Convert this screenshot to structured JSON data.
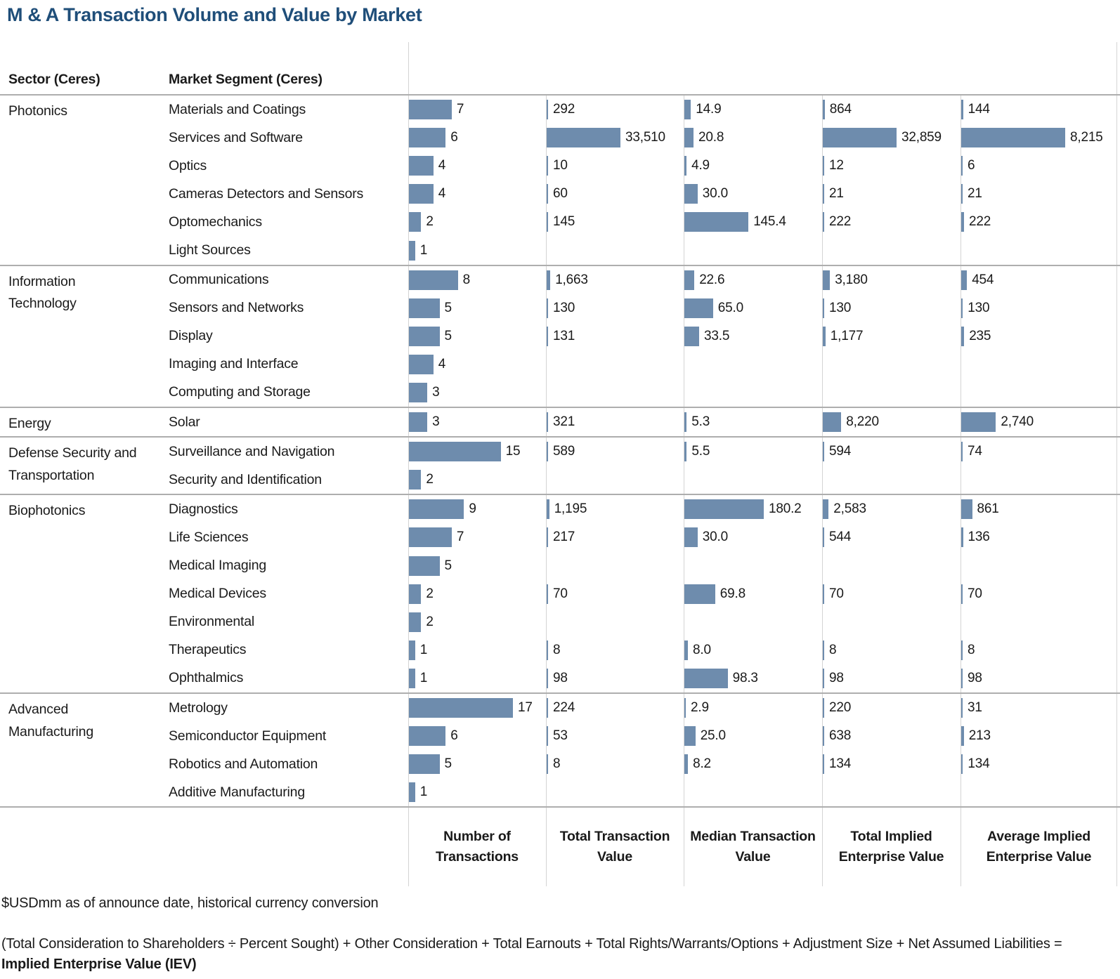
{
  "chart_data": {
    "type": "bar",
    "title": "M & A Transaction Volume and Value by Market",
    "row_headers": [
      "Sector (Ceres)",
      "Market Segment (Ceres)"
    ],
    "legend_position": "none",
    "grid": "column-separators",
    "measures": [
      {
        "label": "Number of Transactions",
        "axis_max": 17
      },
      {
        "label": "Total Transaction Value",
        "axis_max": 33510
      },
      {
        "label": "Median Transaction Value",
        "axis_max": 180.2
      },
      {
        "label": "Total Implied Enterprise Value",
        "axis_max": 32859
      },
      {
        "label": "Average Implied Enterprise Value",
        "axis_max": 8215
      }
    ],
    "sectors": [
      {
        "sector": "Photonics",
        "segments": [
          {
            "name": "Materials and Coatings",
            "values": [
              7,
              292,
              14.9,
              864,
              144
            ],
            "labels": [
              "7",
              "292",
              "14.9",
              "864",
              "144"
            ]
          },
          {
            "name": "Services and Software",
            "values": [
              6,
              33510,
              20.8,
              32859,
              8215
            ],
            "labels": [
              "6",
              "33,510",
              "20.8",
              "32,859",
              "8,215"
            ]
          },
          {
            "name": "Optics",
            "values": [
              4,
              10,
              4.9,
              12,
              6
            ],
            "labels": [
              "4",
              "10",
              "4.9",
              "12",
              "6"
            ]
          },
          {
            "name": "Cameras Detectors and Sensors",
            "values": [
              4,
              60,
              30.0,
              21,
              21
            ],
            "labels": [
              "4",
              "60",
              "30.0",
              "21",
              "21"
            ]
          },
          {
            "name": "Optomechanics",
            "values": [
              2,
              145,
              145.4,
              222,
              222
            ],
            "labels": [
              "2",
              "145",
              "145.4",
              "222",
              "222"
            ]
          },
          {
            "name": "Light Sources",
            "values": [
              1,
              null,
              null,
              null,
              null
            ],
            "labels": [
              "1",
              "",
              "",
              "",
              ""
            ]
          }
        ]
      },
      {
        "sector": "Information Technology",
        "segments": [
          {
            "name": "Communications",
            "values": [
              8,
              1663,
              22.6,
              3180,
              454
            ],
            "labels": [
              "8",
              "1,663",
              "22.6",
              "3,180",
              "454"
            ]
          },
          {
            "name": "Sensors and Networks",
            "values": [
              5,
              130,
              65.0,
              130,
              130
            ],
            "labels": [
              "5",
              "130",
              "65.0",
              "130",
              "130"
            ]
          },
          {
            "name": "Display",
            "values": [
              5,
              131,
              33.5,
              1177,
              235
            ],
            "labels": [
              "5",
              "131",
              "33.5",
              "1,177",
              "235"
            ]
          },
          {
            "name": "Imaging and Interface",
            "values": [
              4,
              null,
              null,
              null,
              null
            ],
            "labels": [
              "4",
              "",
              "",
              "",
              ""
            ]
          },
          {
            "name": "Computing and Storage",
            "values": [
              3,
              null,
              null,
              null,
              null
            ],
            "labels": [
              "3",
              "",
              "",
              "",
              ""
            ]
          }
        ]
      },
      {
        "sector": "Energy",
        "segments": [
          {
            "name": "Solar",
            "values": [
              3,
              321,
              5.3,
              8220,
              2740
            ],
            "labels": [
              "3",
              "321",
              "5.3",
              "8,220",
              "2,740"
            ]
          }
        ]
      },
      {
        "sector": "Defense Security and Transportation",
        "segments": [
          {
            "name": "Surveillance and Navigation",
            "values": [
              15,
              589,
              5.5,
              594,
              74
            ],
            "labels": [
              "15",
              "589",
              "5.5",
              "594",
              "74"
            ]
          },
          {
            "name": "Security and Identification",
            "values": [
              2,
              null,
              null,
              null,
              null
            ],
            "labels": [
              "2",
              "",
              "",
              "",
              ""
            ]
          }
        ]
      },
      {
        "sector": "Biophotonics",
        "segments": [
          {
            "name": "Diagnostics",
            "values": [
              9,
              1195,
              180.2,
              2583,
              861
            ],
            "labels": [
              "9",
              "1,195",
              "180.2",
              "2,583",
              "861"
            ]
          },
          {
            "name": "Life Sciences",
            "values": [
              7,
              217,
              30.0,
              544,
              136
            ],
            "labels": [
              "7",
              "217",
              "30.0",
              "544",
              "136"
            ]
          },
          {
            "name": "Medical Imaging",
            "values": [
              5,
              null,
              null,
              null,
              null
            ],
            "labels": [
              "5",
              "",
              "",
              "",
              ""
            ]
          },
          {
            "name": "Medical Devices",
            "values": [
              2,
              70,
              69.8,
              70,
              70
            ],
            "labels": [
              "2",
              "70",
              "69.8",
              "70",
              "70"
            ]
          },
          {
            "name": "Environmental",
            "values": [
              2,
              null,
              null,
              null,
              null
            ],
            "labels": [
              "2",
              "",
              "",
              "",
              ""
            ]
          },
          {
            "name": "Therapeutics",
            "values": [
              1,
              8,
              8.0,
              8,
              8
            ],
            "labels": [
              "1",
              "8",
              "8.0",
              "8",
              "8"
            ]
          },
          {
            "name": "Ophthalmics",
            "values": [
              1,
              98,
              98.3,
              98,
              98
            ],
            "labels": [
              "1",
              "98",
              "98.3",
              "98",
              "98"
            ]
          }
        ]
      },
      {
        "sector": "Advanced Manufacturing",
        "segments": [
          {
            "name": "Metrology",
            "values": [
              17,
              224,
              2.9,
              220,
              31
            ],
            "labels": [
              "17",
              "224",
              "2.9",
              "220",
              "31"
            ]
          },
          {
            "name": "Semiconductor Equipment",
            "values": [
              6,
              53,
              25.0,
              638,
              213
            ],
            "labels": [
              "6",
              "53",
              "25.0",
              "638",
              "213"
            ]
          },
          {
            "name": "Robotics and Automation",
            "values": [
              5,
              8,
              8.2,
              134,
              134
            ],
            "labels": [
              "5",
              "8",
              "8.2",
              "134",
              "134"
            ]
          },
          {
            "name": "Additive Manufacturing",
            "values": [
              1,
              null,
              null,
              null,
              null
            ],
            "labels": [
              "1",
              "",
              "",
              "",
              ""
            ]
          }
        ]
      }
    ]
  },
  "footnotes": {
    "line1": "$USDmm as of announce date, historical currency conversion",
    "line2_text": "(Total Consideration to Shareholders ÷ Percent Sought) + Other Consideration + Total Earnouts + Total Rights/Warrants/Options + Adjustment Size + Net Assumed Liabilities = ",
    "line2_bold": "Implied Enterprise Value (IEV)"
  },
  "colors": {
    "bar": "#6e8cad",
    "title": "#1f4e79",
    "section_rule": "#aeaeae",
    "column_rule": "#d4d4d4"
  }
}
